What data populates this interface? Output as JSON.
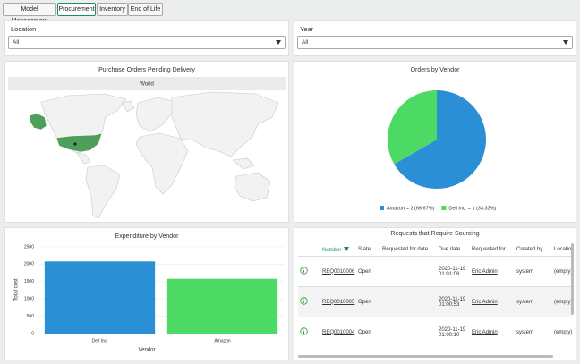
{
  "tabs": [
    "Model Management",
    "Procurement",
    "Inventory",
    "End of Life"
  ],
  "filters": [
    {
      "label": "Location",
      "value": "All"
    },
    {
      "label": "Year",
      "value": "All"
    }
  ],
  "map": {
    "title": "Purchase Orders Pending Delivery",
    "header": "World"
  },
  "chart_data": [
    {
      "type": "pie",
      "title": "Orders by Vendor",
      "categories": [
        "Amazon = 2 (66.67%)",
        "Dell Inc. = 1 (33.33%)"
      ],
      "values": [
        2,
        1
      ],
      "colors": [
        "#2b8fd6",
        "#4cd964"
      ]
    },
    {
      "type": "bar",
      "title": "Expenditure by Vendor",
      "categories": [
        "Dell Inc.",
        "Amazon"
      ],
      "values": [
        2080,
        1580
      ],
      "colors": [
        "#2b8fd6",
        "#4cd964"
      ],
      "xlabel": "Vendor",
      "ylabel": "Total cost",
      "ylim": [
        0,
        2500
      ],
      "yticks": [
        0,
        500,
        1000,
        1500,
        2000,
        2500
      ],
      "grid": true
    }
  ],
  "table": {
    "title": "Requests that Require Sourcing",
    "columns": [
      "Number",
      "State",
      "Requested for date",
      "Due date",
      "Requested for",
      "Created by",
      "Location"
    ],
    "rows": [
      [
        "REQ0010006",
        "Open",
        null,
        "2020-11-19 01:01:08",
        "Eric Admin",
        "system",
        "(empty)"
      ],
      [
        "REQ0010005",
        "Open",
        null,
        "2020-11-19 01:00:53",
        "Eric Admin",
        "system",
        "(empty)"
      ],
      [
        "REQ0010004",
        "Open",
        null,
        "2020-11-19 01:00:10",
        "Eric Admin",
        "system",
        "(empty)"
      ]
    ]
  }
}
